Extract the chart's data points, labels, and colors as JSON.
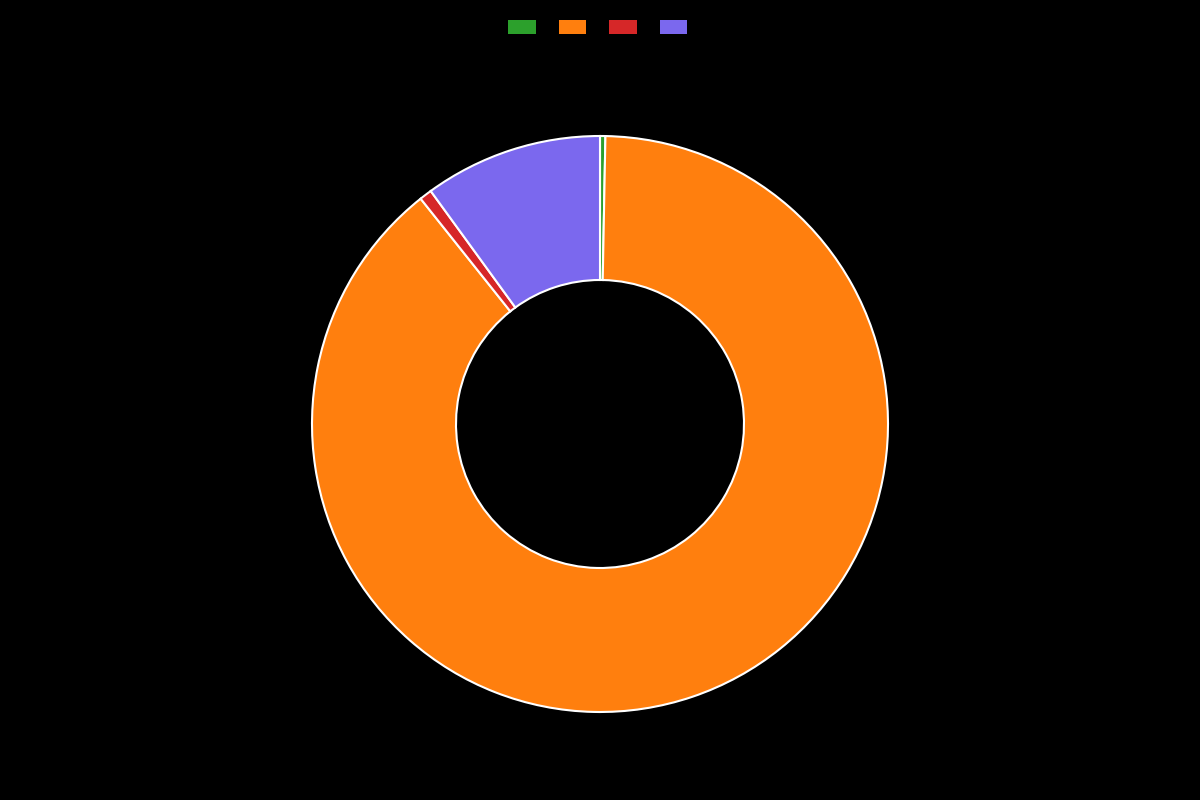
{
  "values": [
    0.3,
    89.0,
    0.7,
    10.0
  ],
  "colors": [
    "#2ca02c",
    "#ff7f0e",
    "#d62728",
    "#7b68ee"
  ],
  "background_color": "#000000",
  "wedge_edge_color": "#ffffff",
  "wedge_linewidth": 1.5,
  "legend_colors": [
    "#2ca02c",
    "#ff7f0e",
    "#d62728",
    "#7b68ee"
  ],
  "legend_labels": [
    "",
    "",
    "",
    ""
  ],
  "startangle": 90,
  "figsize": [
    12.0,
    8.0
  ],
  "dpi": 100
}
